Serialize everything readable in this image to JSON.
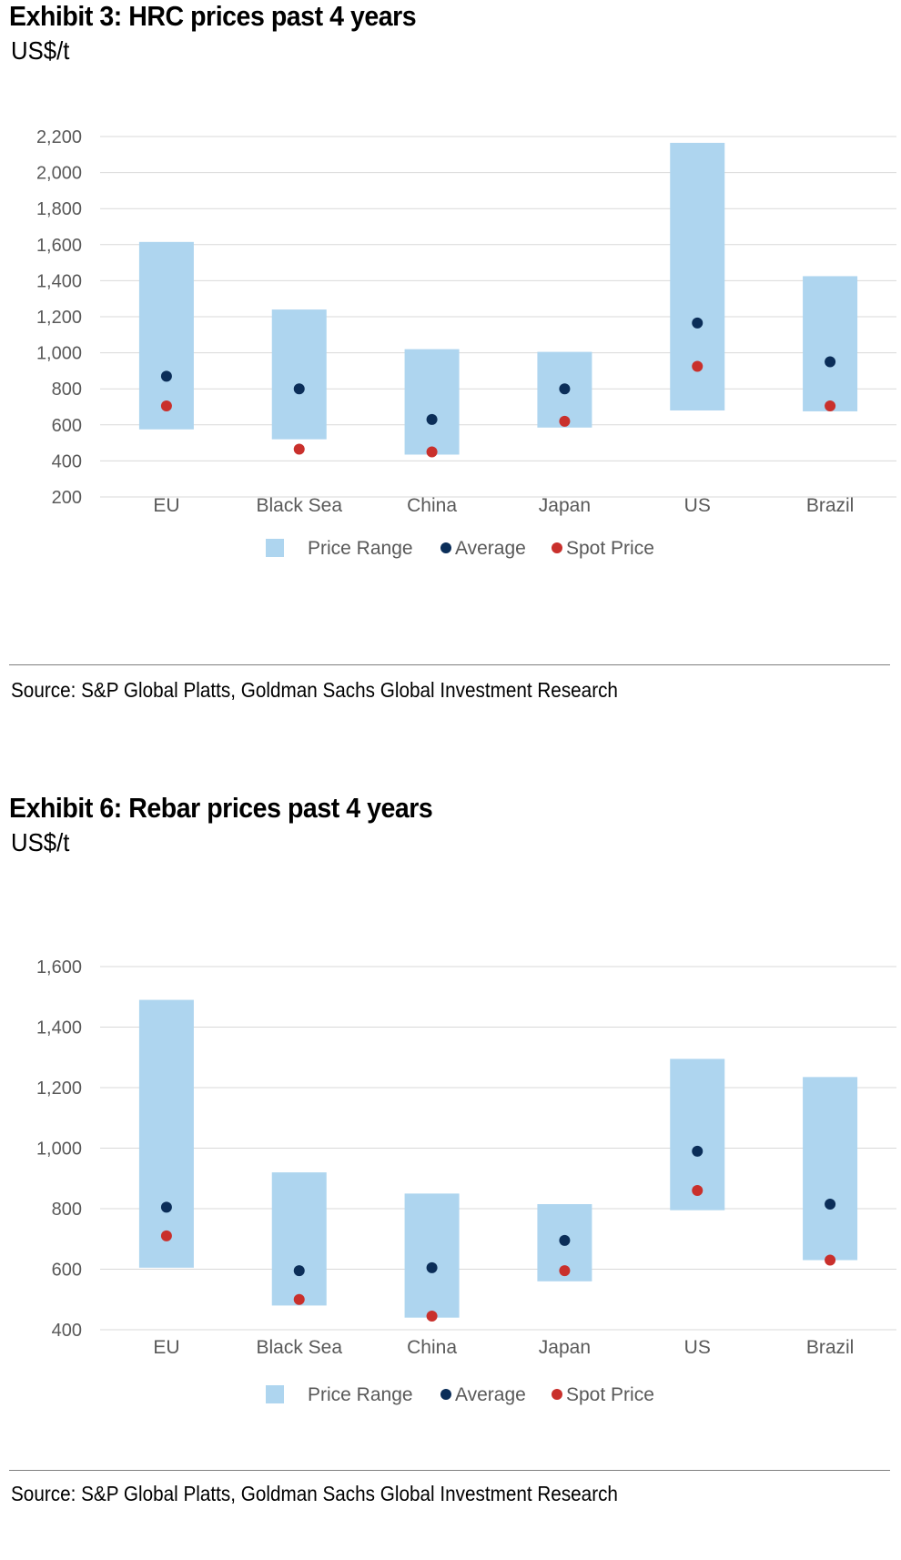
{
  "colors": {
    "range": "#aed5ef",
    "average": "#0b2e59",
    "spot": "#c9302c",
    "grid": "#d9d9d9",
    "axis_text": "#595959"
  },
  "chart_data": [
    {
      "type": "range_dot",
      "title": "Exhibit 3: HRC prices past 4 years",
      "unit": "US$/t",
      "categories": [
        "EU",
        "Black Sea",
        "China",
        "Japan",
        "US",
        "Brazil"
      ],
      "ylim": [
        200,
        2200
      ],
      "yticks": [
        200,
        400,
        600,
        800,
        1000,
        1200,
        1400,
        1600,
        1800,
        2000,
        2200
      ],
      "ytick_labels": [
        "200",
        "400",
        "600",
        "800",
        "1,000",
        "1,200",
        "1,400",
        "1,600",
        "1,800",
        "2,000",
        "2,200"
      ],
      "series": [
        {
          "name": "Price Range",
          "low": [
            575,
            520,
            435,
            585,
            680,
            675
          ],
          "high": [
            1615,
            1240,
            1020,
            1005,
            2165,
            1425
          ]
        },
        {
          "name": "Average",
          "values": [
            870,
            800,
            630,
            800,
            1165,
            950
          ]
        },
        {
          "name": "Spot Price",
          "values": [
            705,
            465,
            450,
            620,
            925,
            705
          ]
        }
      ],
      "legend": [
        "Price Range",
        "Average",
        "Spot Price"
      ],
      "source": "Source: S&P Global Platts, Goldman Sachs Global Investment Research"
    },
    {
      "type": "range_dot",
      "title": "Exhibit 6: Rebar prices past 4 years",
      "unit": "US$/t",
      "categories": [
        "EU",
        "Black Sea",
        "China",
        "Japan",
        "US",
        "Brazil"
      ],
      "ylim": [
        400,
        1600
      ],
      "yticks": [
        400,
        600,
        800,
        1000,
        1200,
        1400,
        1600
      ],
      "ytick_labels": [
        "400",
        "600",
        "800",
        "1,000",
        "1,200",
        "1,400",
        "1,600"
      ],
      "series": [
        {
          "name": "Price Range",
          "low": [
            605,
            480,
            440,
            560,
            795,
            630
          ],
          "high": [
            1490,
            920,
            850,
            815,
            1295,
            1235
          ]
        },
        {
          "name": "Average",
          "values": [
            805,
            595,
            605,
            695,
            990,
            815
          ]
        },
        {
          "name": "Spot Price",
          "values": [
            710,
            500,
            445,
            595,
            860,
            630
          ]
        }
      ],
      "legend": [
        "Price Range",
        "Average",
        "Spot Price"
      ],
      "source": "Source: S&P Global Platts, Goldman Sachs Global Investment Research"
    }
  ]
}
